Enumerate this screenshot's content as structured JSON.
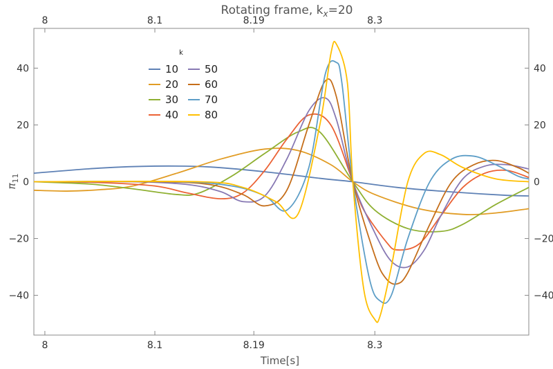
{
  "chart_data": {
    "type": "line",
    "title": "Rotating frame, k",
    "title_sub": "x",
    "title_suffix": "=20",
    "xlabel": "Time[s]",
    "ylabel": "π",
    "ylabel_sub": "11",
    "xlim": [
      7.99,
      8.44
    ],
    "ylim": [
      -54,
      54
    ],
    "x_ticks": [
      {
        "value": 8.0,
        "label": "8"
      },
      {
        "value": 8.1,
        "label": "8.1"
      },
      {
        "value": 8.19,
        "label": "8.19"
      },
      {
        "value": 8.3,
        "label": "8.3"
      }
    ],
    "y_ticks": [
      {
        "value": 40,
        "label": "40"
      },
      {
        "value": 20,
        "label": "20"
      },
      {
        "value": 0,
        "label": "0"
      },
      {
        "value": -20,
        "label": "−20"
      },
      {
        "value": -40,
        "label": "−40"
      }
    ],
    "grid": false,
    "legend_title": "k",
    "legend_position": "top-left",
    "series": [
      {
        "name": "10",
        "color": "#5E81B5",
        "x": [
          7.99,
          8.05,
          8.1,
          8.15,
          8.2,
          8.25,
          8.28,
          8.32,
          8.37,
          8.42,
          8.44
        ],
        "y": [
          3.0,
          4.8,
          5.5,
          5.2,
          3.5,
          1.2,
          0,
          -2.0,
          -3.6,
          -4.8,
          -5.0
        ]
      },
      {
        "name": "20",
        "color": "#E19C24",
        "x": [
          7.99,
          8.02,
          8.05,
          8.08,
          8.12,
          8.16,
          8.2,
          8.23,
          8.26,
          8.28,
          8.3,
          8.34,
          8.38,
          8.41,
          8.44
        ],
        "y": [
          -3.0,
          -3.3,
          -2.8,
          -1.5,
          3.0,
          8.0,
          11.5,
          11.0,
          6.0,
          0,
          -4.5,
          -9.5,
          -11.5,
          -11.0,
          -9.5
        ]
      },
      {
        "name": "30",
        "color": "#8FB032",
        "x": [
          7.99,
          8.04,
          8.08,
          8.12,
          8.14,
          8.17,
          8.2,
          8.23,
          8.25,
          8.28,
          8.3,
          8.33,
          8.36,
          8.38,
          8.41,
          8.44
        ],
        "y": [
          0,
          -0.8,
          -2.5,
          -4.5,
          -4.0,
          2.0,
          10.0,
          17.5,
          17.5,
          0,
          -10.0,
          -16.5,
          -17.5,
          -15.0,
          -8.0,
          -2.0
        ]
      },
      {
        "name": "40",
        "color": "#EB6235",
        "x": [
          7.99,
          8.05,
          8.1,
          8.13,
          8.16,
          8.18,
          8.2,
          8.22,
          8.24,
          8.26,
          8.28,
          8.29,
          8.31,
          8.32,
          8.34,
          8.36,
          8.38,
          8.4,
          8.42,
          8.44
        ],
        "y": [
          0,
          -0.3,
          -1.5,
          -4.0,
          -6.0,
          -4.0,
          4.0,
          15.0,
          23.5,
          20.0,
          0,
          -10.0,
          -21.0,
          -24.0,
          -22.0,
          -12.0,
          -2.0,
          3.0,
          4.0,
          1.5
        ]
      },
      {
        "name": "50",
        "color": "#8778B3",
        "x": [
          7.99,
          8.08,
          8.13,
          8.16,
          8.18,
          8.2,
          8.22,
          8.24,
          8.255,
          8.265,
          8.28,
          8.3,
          8.315,
          8.33,
          8.345,
          8.36,
          8.38,
          8.4,
          8.42,
          8.44
        ],
        "y": [
          0,
          0,
          -1.0,
          -3.5,
          -7.0,
          -5.0,
          8.0,
          25.0,
          29.5,
          22.0,
          0,
          -18.0,
          -28.0,
          -30.0,
          -24.0,
          -12.0,
          1.0,
          5.5,
          6.0,
          4.5
        ]
      },
      {
        "name": "60",
        "color": "#C56E1A",
        "x": [
          7.99,
          8.1,
          8.15,
          8.18,
          8.2,
          8.22,
          8.24,
          8.255,
          8.265,
          8.28,
          8.3,
          8.31,
          8.32,
          8.33,
          8.35,
          8.37,
          8.39,
          8.41,
          8.43,
          8.44
        ],
        "y": [
          0,
          0,
          -1.0,
          -4.5,
          -8.5,
          -3.0,
          20.0,
          35.5,
          30.0,
          0,
          -26.0,
          -34.0,
          -36.0,
          -32.0,
          -15.0,
          0,
          6.0,
          7.5,
          5.0,
          3.0
        ]
      },
      {
        "name": "70",
        "color": "#5D9EC7",
        "x": [
          7.99,
          8.12,
          8.17,
          8.2,
          8.22,
          8.24,
          8.255,
          8.265,
          8.27,
          8.28,
          8.295,
          8.305,
          8.315,
          8.33,
          8.35,
          8.37,
          8.39,
          8.41,
          8.43,
          8.44
        ],
        "y": [
          0,
          0,
          -1.5,
          -5.0,
          -10.0,
          5.0,
          38.0,
          42.0,
          35.0,
          0,
          -34.0,
          -42.0,
          -40.0,
          -20.0,
          0,
          8.0,
          9.0,
          6.0,
          2.0,
          1.0
        ]
      },
      {
        "name": "80",
        "color": "#FFBF00",
        "x": [
          7.99,
          8.14,
          8.18,
          8.21,
          8.23,
          8.25,
          8.26,
          8.265,
          8.275,
          8.28,
          8.29,
          8.3,
          8.305,
          8.315,
          8.33,
          8.345,
          8.36,
          8.38,
          8.41,
          8.44
        ],
        "y": [
          0,
          0,
          -2.0,
          -7.0,
          -11.5,
          20.0,
          45.0,
          48.5,
          35.0,
          0,
          -38.0,
          -48.5,
          -47.0,
          -30.0,
          0,
          10.0,
          9.5,
          5.0,
          1.0,
          0
        ]
      }
    ]
  }
}
